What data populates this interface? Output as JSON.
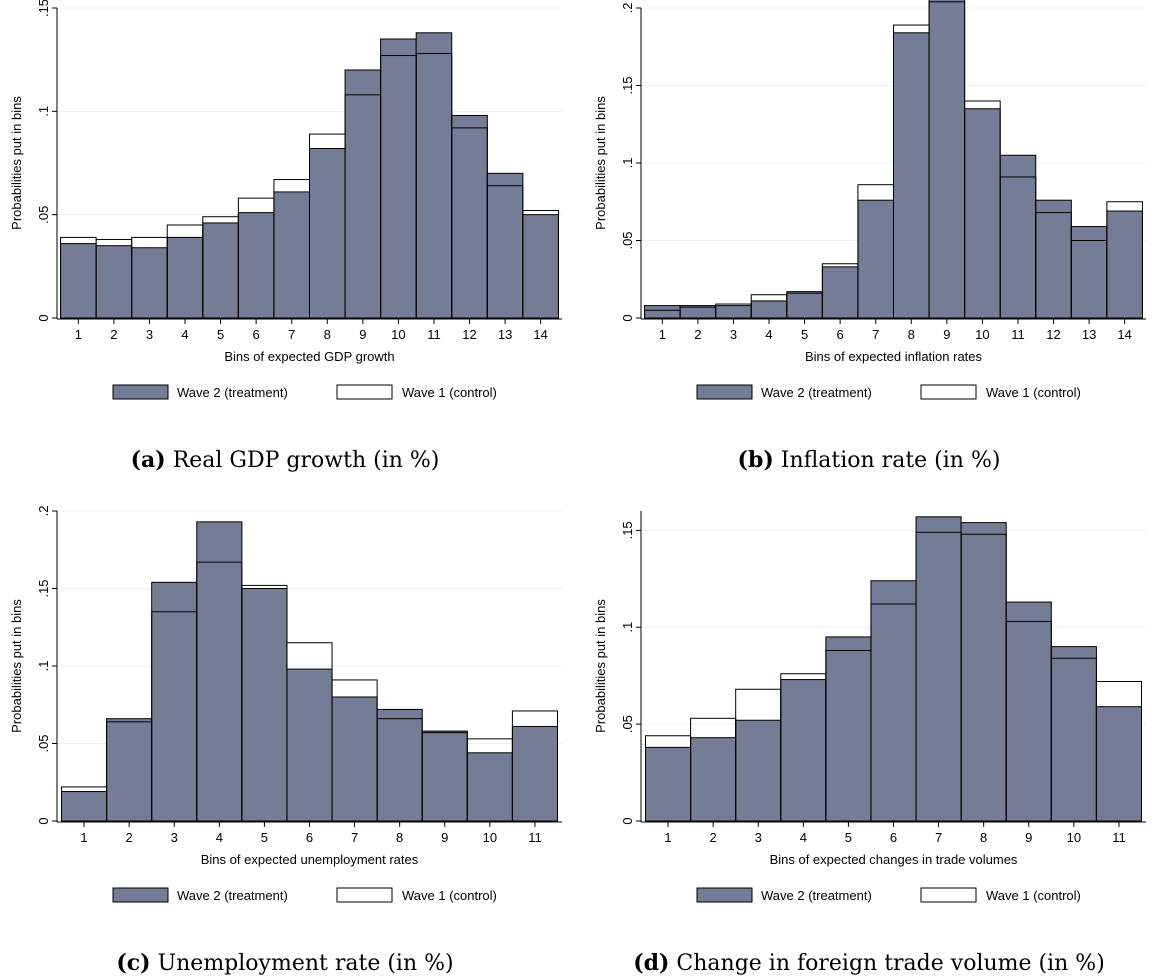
{
  "colors": {
    "treatment_fill": "#757d96",
    "control_fill": "#ffffff",
    "stroke": "#000000",
    "grid": "#eaf0f3"
  },
  "charts": [
    {
      "caption_tag": "(a)",
      "caption_text": "Real GDP growth (in %)",
      "chart_data": {
        "type": "bar",
        "ylabel": "Probabilities put in bins",
        "xlabel": "Bins of expected GDP growth",
        "categories": [
          "1",
          "2",
          "3",
          "4",
          "5",
          "6",
          "7",
          "8",
          "9",
          "10",
          "11",
          "12",
          "13",
          "14"
        ],
        "ylim": [
          0,
          0.15
        ],
        "yticks": [
          0,
          0.05,
          0.1,
          0.15
        ],
        "ytick_labels": [
          "0",
          ".05",
          ".1",
          ".15"
        ],
        "grid": true,
        "legend_placement": "bottom",
        "series": [
          {
            "name": "Wave 2 (treatment)",
            "values": [
              0.036,
              0.035,
              0.034,
              0.039,
              0.046,
              0.051,
              0.061,
              0.082,
              0.12,
              0.135,
              0.138,
              0.098,
              0.07,
              0.05
            ]
          },
          {
            "name": "Wave 1 (control)",
            "values": [
              0.039,
              0.038,
              0.039,
              0.045,
              0.049,
              0.058,
              0.067,
              0.089,
              0.108,
              0.127,
              0.128,
              0.092,
              0.064,
              0.052
            ]
          }
        ]
      }
    },
    {
      "caption_tag": "(b)",
      "caption_text": "Inflation rate (in %)",
      "chart_data": {
        "type": "bar",
        "ylabel": "Probabilities put in bins",
        "xlabel": "Bins of expected inflation rates",
        "categories": [
          "1",
          "2",
          "3",
          "4",
          "5",
          "6",
          "7",
          "8",
          "9",
          "10",
          "11",
          "12",
          "13",
          "14"
        ],
        "ylim": [
          0,
          0.2
        ],
        "yticks": [
          0,
          0.05,
          0.1,
          0.15,
          0.2
        ],
        "ytick_labels": [
          "0",
          ".05",
          ".1",
          ".15",
          ".2"
        ],
        "grid": true,
        "legend_placement": "bottom",
        "series": [
          {
            "name": "Wave 2 (treatment)",
            "values": [
              0.008,
              0.008,
              0.008,
              0.011,
              0.017,
              0.033,
              0.076,
              0.184,
              0.206,
              0.135,
              0.105,
              0.076,
              0.059,
              0.069
            ]
          },
          {
            "name": "Wave 1 (control)",
            "values": [
              0.005,
              0.007,
              0.009,
              0.015,
              0.016,
              0.035,
              0.086,
              0.189,
              0.204,
              0.14,
              0.091,
              0.068,
              0.05,
              0.075
            ]
          }
        ]
      }
    },
    {
      "caption_tag": "(c)",
      "caption_text": "Unemployment rate (in %)",
      "chart_data": {
        "type": "bar",
        "ylabel": "Probabilities put in bins",
        "xlabel": "Bins of expected unemployment rates",
        "categories": [
          "1",
          "2",
          "3",
          "4",
          "5",
          "6",
          "7",
          "8",
          "9",
          "10",
          "11"
        ],
        "ylim": [
          0,
          0.2
        ],
        "yticks": [
          0,
          0.05,
          0.1,
          0.15,
          0.2
        ],
        "ytick_labels": [
          "0",
          ".05",
          ".1",
          ".15",
          ".2"
        ],
        "grid": true,
        "legend_placement": "bottom",
        "series": [
          {
            "name": "Wave 2 (treatment)",
            "values": [
              0.019,
              0.066,
              0.154,
              0.193,
              0.15,
              0.098,
              0.08,
              0.072,
              0.058,
              0.044,
              0.061
            ]
          },
          {
            "name": "Wave 1 (control)",
            "values": [
              0.022,
              0.064,
              0.135,
              0.167,
              0.152,
              0.115,
              0.091,
              0.066,
              0.057,
              0.053,
              0.071
            ]
          }
        ]
      }
    },
    {
      "caption_tag": "(d)",
      "caption_text": "Change in foreign trade volume (in %)",
      "chart_data": {
        "type": "bar",
        "ylabel": "Probabilities put in bins",
        "xlabel": "Bins of expected changes in trade volumes",
        "categories": [
          "1",
          "2",
          "3",
          "4",
          "5",
          "6",
          "7",
          "8",
          "9",
          "10",
          "11"
        ],
        "ylim": [
          0,
          0.16
        ],
        "yticks": [
          0,
          0.05,
          0.1,
          0.15
        ],
        "ytick_labels": [
          "0",
          ".05",
          ".1",
          ".15"
        ],
        "grid": true,
        "legend_placement": "bottom",
        "series": [
          {
            "name": "Wave 2 (treatment)",
            "values": [
              0.038,
              0.043,
              0.052,
              0.073,
              0.095,
              0.124,
              0.157,
              0.154,
              0.113,
              0.09,
              0.059
            ]
          },
          {
            "name": "Wave 1 (control)",
            "values": [
              0.044,
              0.053,
              0.068,
              0.076,
              0.088,
              0.112,
              0.149,
              0.148,
              0.103,
              0.084,
              0.072
            ]
          }
        ]
      }
    }
  ]
}
